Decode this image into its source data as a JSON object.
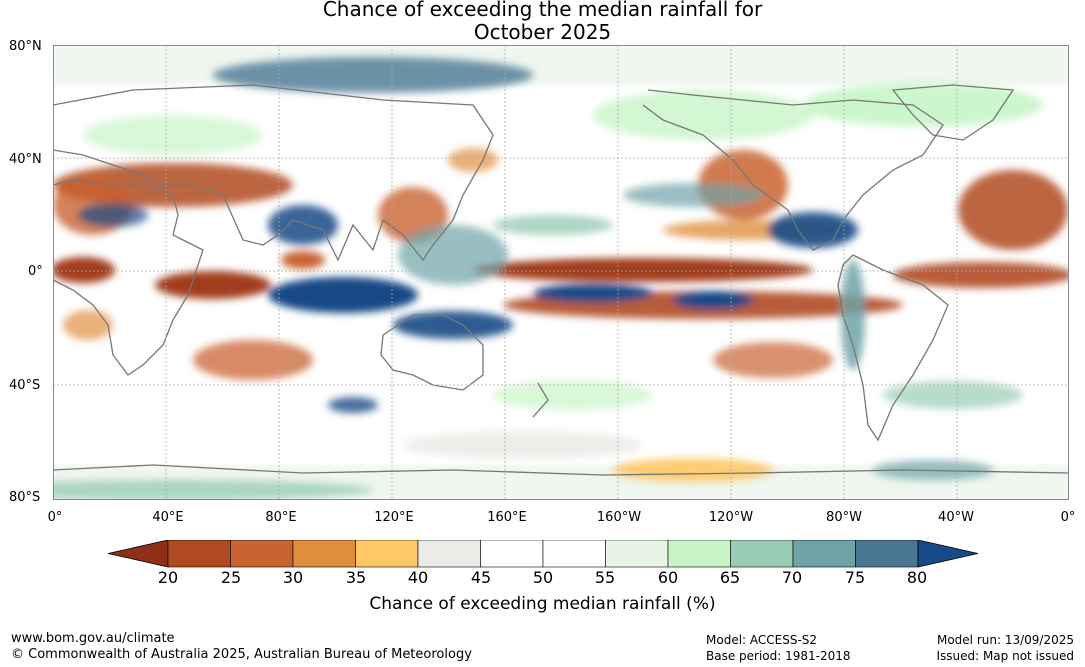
{
  "title_line1": "Chance of exceeding the median rainfall for",
  "title_line2": "October 2025",
  "lat_labels": [
    "80°N",
    "40°N",
    "0°",
    "40°S",
    "80°S"
  ],
  "lon_labels": [
    "0°",
    "40°E",
    "80°E",
    "120°E",
    "160°E",
    "160°W",
    "120°W",
    "80°W",
    "40°W",
    "0°"
  ],
  "legend": {
    "title": "Chance of exceeding median rainfall (%)",
    "ticks": [
      "20",
      "25",
      "30",
      "35",
      "40",
      "45",
      "50",
      "55",
      "60",
      "65",
      "70",
      "75",
      "80"
    ],
    "colors": [
      "#8f2f17",
      "#b04a22",
      "#c96330",
      "#e08e3e",
      "#fdc865",
      "#ebebe8",
      "#ffffff",
      "#ffffff",
      "#e8f5e6",
      "#c7f5c7",
      "#99ccb5",
      "#6ea3a7",
      "#4a7893",
      "#174a86"
    ]
  },
  "footer": {
    "url": "www.bom.gov.au/climate",
    "copyright": "© Commonwealth of Australia 2025, Australian Bureau of Meteorology",
    "model": "Model: ACCESS-S2",
    "base_period": "Base period: 1981-2018",
    "model_run": "Model run: 13/09/2025",
    "issued": "Issued: Map not issued"
  }
}
